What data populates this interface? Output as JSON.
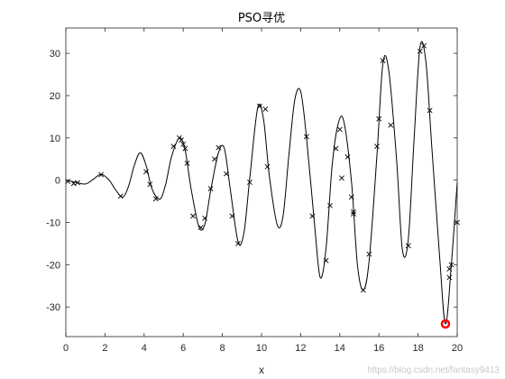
{
  "chart_data": {
    "type": "line",
    "title": "PSO寻优",
    "xlabel": "x",
    "ylabel": "",
    "xlim": [
      0,
      20
    ],
    "ylim": [
      -37,
      36
    ],
    "xticks": [
      0,
      2,
      4,
      6,
      8,
      10,
      12,
      14,
      16,
      18,
      20
    ],
    "yticks": [
      -30,
      -20,
      -10,
      0,
      10,
      20,
      30
    ],
    "grid": false,
    "series": [
      {
        "style": "line",
        "color": "#000000",
        "x": [
          0,
          0.5,
          1.0,
          1.4,
          1.8,
          2.2,
          2.5,
          2.9,
          3.2,
          3.5,
          3.8,
          4.1,
          4.4,
          4.8,
          5.1,
          5.4,
          5.8,
          6.1,
          6.4,
          6.8,
          7.1,
          7.4,
          7.8,
          8.1,
          8.4,
          8.8,
          9.1,
          9.4,
          9.8,
          10.1,
          10.4,
          10.8,
          11.1,
          11.4,
          11.7,
          12.0,
          12.3,
          12.7,
          13.0,
          13.3,
          13.6,
          13.9,
          14.2,
          14.6,
          14.9,
          15.2,
          15.5,
          15.9,
          16.2,
          16.5,
          16.9,
          17.2,
          17.5,
          17.8,
          18.1,
          18.4,
          18.7,
          19.1,
          19.4,
          19.7,
          20.0
        ],
        "y": [
          0,
          -0.5,
          -0.9,
          0.2,
          1.4,
          0.1,
          -2.0,
          -4.0,
          -1.5,
          3.5,
          6.5,
          3.5,
          -2.0,
          -4.5,
          -1.0,
          5.5,
          10.0,
          7.0,
          -2.0,
          -11.0,
          -10.5,
          -2.5,
          6.5,
          7.5,
          -2.0,
          -14.5,
          -12.5,
          0.5,
          17.0,
          14.5,
          1.0,
          -10.5,
          -8.5,
          6.0,
          19.0,
          21.0,
          10.0,
          -10.0,
          -23.0,
          -16.0,
          3.0,
          13.0,
          14.0,
          -0.5,
          -20.0,
          -26.0,
          -19.0,
          6.0,
          27.5,
          26.0,
          5.0,
          -16.5,
          -14.0,
          10.0,
          31.5,
          28.0,
          8.0,
          -18.0,
          -34.0,
          -20.0,
          -0.5
        ]
      },
      {
        "style": "marker-x",
        "color": "#000000",
        "x": [
          0.1,
          0.4,
          0.6,
          1.8,
          2.8,
          4.1,
          4.3,
          4.6,
          5.5,
          5.8,
          5.9,
          6.0,
          6.1,
          6.2,
          6.5,
          6.9,
          7.1,
          7.4,
          7.6,
          7.8,
          8.2,
          8.5,
          8.8,
          9.4,
          9.9,
          10.2,
          10.3,
          12.3,
          12.6,
          13.3,
          13.5,
          13.8,
          14.0,
          14.1,
          14.4,
          14.6,
          14.7,
          14.7,
          15.2,
          15.5,
          15.9,
          16.0,
          16.2,
          16.6,
          17.5,
          18.1,
          18.3,
          18.6,
          19.6,
          19.6,
          19.7,
          20.0
        ],
        "y": [
          -0.3,
          -0.8,
          -0.6,
          1.3,
          -3.8,
          2.0,
          -1.0,
          -4.4,
          8.0,
          10.0,
          9.5,
          8.5,
          7.5,
          4.0,
          -8.5,
          -11.2,
          -9.0,
          -2.0,
          5.0,
          7.7,
          1.5,
          -8.5,
          -15.0,
          -0.5,
          17.5,
          16.8,
          3.2,
          10.3,
          -8.5,
          -19.0,
          -6.0,
          7.5,
          12.0,
          0.5,
          5.5,
          -4.0,
          -7.5,
          -8.0,
          -26.0,
          -17.5,
          8.0,
          14.5,
          28.3,
          13.0,
          -15.5,
          30.5,
          31.8,
          16.5,
          -23.0,
          -21.0,
          -20.0,
          -10.0
        ]
      },
      {
        "style": "marker-o",
        "color": "#ff0000",
        "x": [
          19.4
        ],
        "y": [
          -34.0
        ]
      }
    ]
  },
  "watermark": "https://blog.csdn.net/fantasy9413"
}
